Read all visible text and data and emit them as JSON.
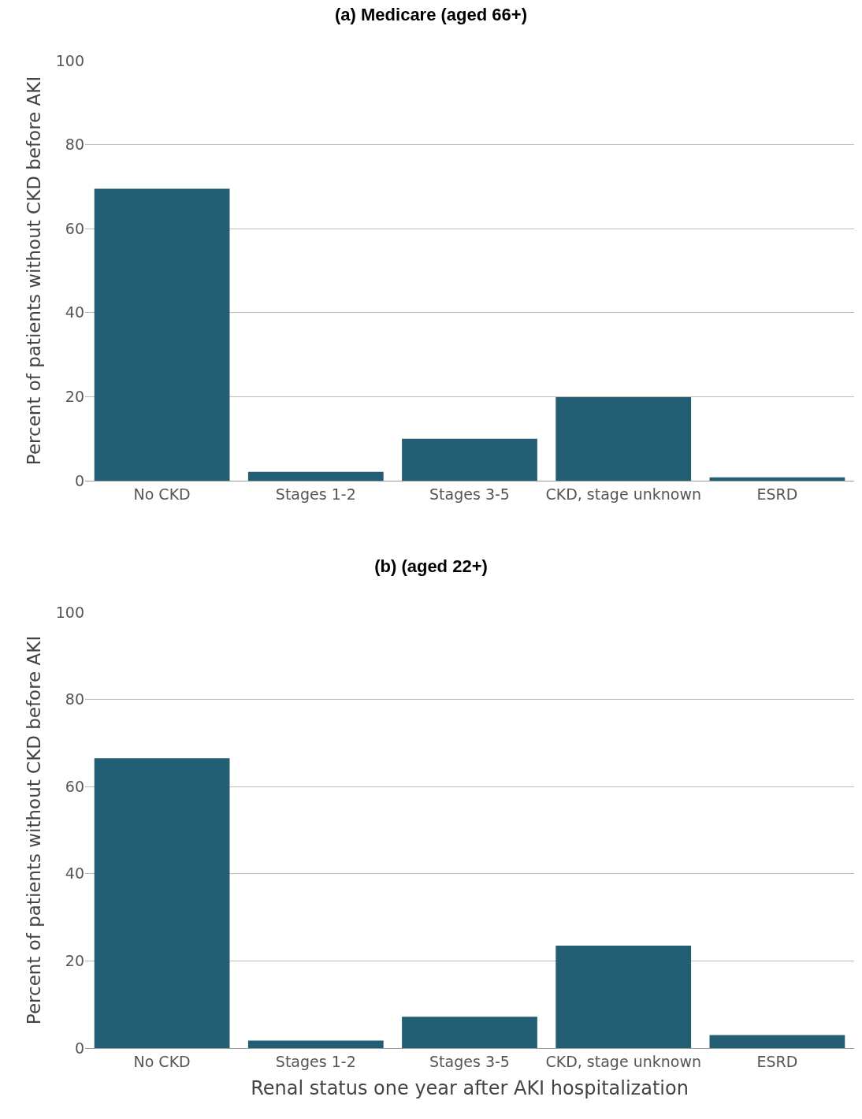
{
  "chart_data": [
    {
      "type": "bar",
      "title": "(a) Medicare (aged 66+)",
      "ylabel": "Percent of patients without CKD before AKI",
      "categories": [
        "No CKD",
        "Stages 1-2",
        "Stages 3-5",
        "CKD, stage unknown",
        "ESRD"
      ],
      "values": [
        69.5,
        2.1,
        10,
        19.9,
        0.8
      ],
      "color": "#225e74",
      "ylim": [
        0,
        100
      ],
      "yticks": [
        0,
        20,
        40,
        60,
        80,
        100
      ],
      "grid": "y"
    },
    {
      "type": "bar",
      "title": "(b) (aged 22+)",
      "ylabel": "Percent of patients without CKD before AKI",
      "xlabel": "Renal status one year after AKI hospitalization",
      "categories": [
        "No CKD",
        "Stages 1-2",
        "Stages 3-5",
        "CKD, stage unknown",
        "ESRD"
      ],
      "values": [
        66.5,
        1.7,
        7.2,
        23.5,
        3
      ],
      "color": "#225e74",
      "ylim": [
        0,
        100
      ],
      "yticks": [
        0,
        20,
        40,
        60,
        80,
        100
      ],
      "grid": "y"
    }
  ]
}
